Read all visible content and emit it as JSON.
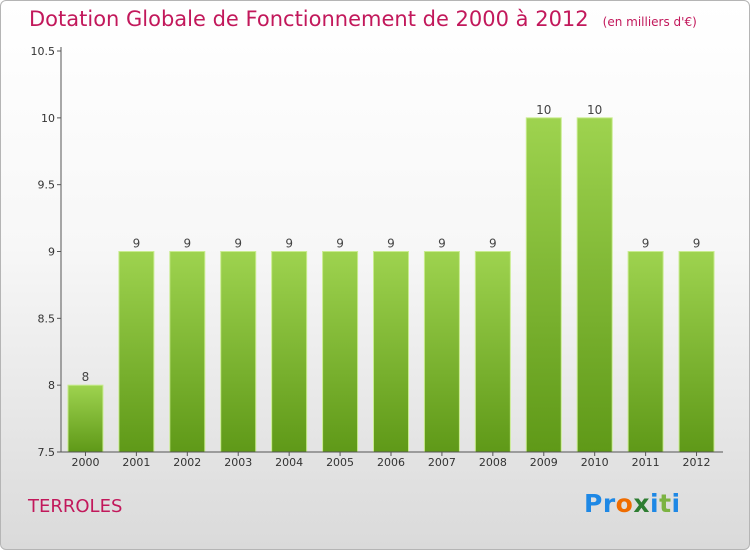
{
  "title": "Dotation Globale de Fonctionnement de 2000 à 2012",
  "unit_note": "(en milliers d'€)",
  "commune": "TERROLES",
  "logo": {
    "text": "Proxiti",
    "letters": [
      "P",
      "r",
      "o",
      "x",
      "i",
      "t",
      "i"
    ],
    "colors": [
      "#1e88e5",
      "#1e88e5",
      "#ef6c00",
      "#2e7d32",
      "#1e88e5",
      "#7cb342",
      "#1e88e5"
    ]
  },
  "colors": {
    "title": "#c2185b",
    "bar_top": "#9ed34f",
    "bar_bottom": "#5f9918",
    "bar_edge": "#c9ec8f",
    "axis": "#555555"
  },
  "chart_data": {
    "type": "bar",
    "categories": [
      "2000",
      "2001",
      "2002",
      "2003",
      "2004",
      "2005",
      "2006",
      "2007",
      "2008",
      "2009",
      "2010",
      "2011",
      "2012"
    ],
    "values": [
      8,
      9,
      9,
      9,
      9,
      9,
      9,
      9,
      9,
      10,
      10,
      9,
      9
    ],
    "value_labels": [
      "8",
      "9",
      "9",
      "9",
      "9",
      "9",
      "9",
      "9",
      "9",
      "10",
      "10",
      "9",
      "9"
    ],
    "ylim": [
      7.5,
      10.5
    ],
    "yticks": [
      "7.5",
      "8",
      "8.5",
      "9",
      "9.5",
      "10",
      "10.5"
    ],
    "xlabel": "",
    "ylabel": "",
    "grid": false
  }
}
